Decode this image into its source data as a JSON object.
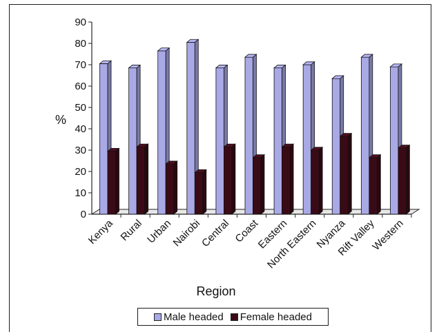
{
  "chart_data": {
    "type": "bar",
    "title": "",
    "xlabel": "Region",
    "ylabel": "%",
    "ylim": [
      0,
      90
    ],
    "yticks": [
      "0",
      "10",
      "20",
      "30",
      "40",
      "50",
      "60",
      "70",
      "80",
      "90"
    ],
    "categories": [
      "Kenya",
      "Rural",
      "Urban",
      "Nairobi",
      "Central",
      "Coast",
      "Eastern",
      "North Eastern",
      "Nyanza",
      "Rift Valley",
      "Western"
    ],
    "series": [
      {
        "name": "Male headed",
        "color": "#a9a9e6",
        "values": [
          70.5,
          68.5,
          76.5,
          80.5,
          68.5,
          73.5,
          68.5,
          70,
          63.5,
          73.5,
          69
        ]
      },
      {
        "name": "Female headed",
        "color": "#3a0b16",
        "values": [
          29.5,
          31.5,
          23.5,
          19.5,
          31.5,
          26.5,
          31.5,
          30,
          36.5,
          26.5,
          31
        ]
      }
    ],
    "grid": false,
    "style": "3d",
    "legend_position": "bottom"
  }
}
